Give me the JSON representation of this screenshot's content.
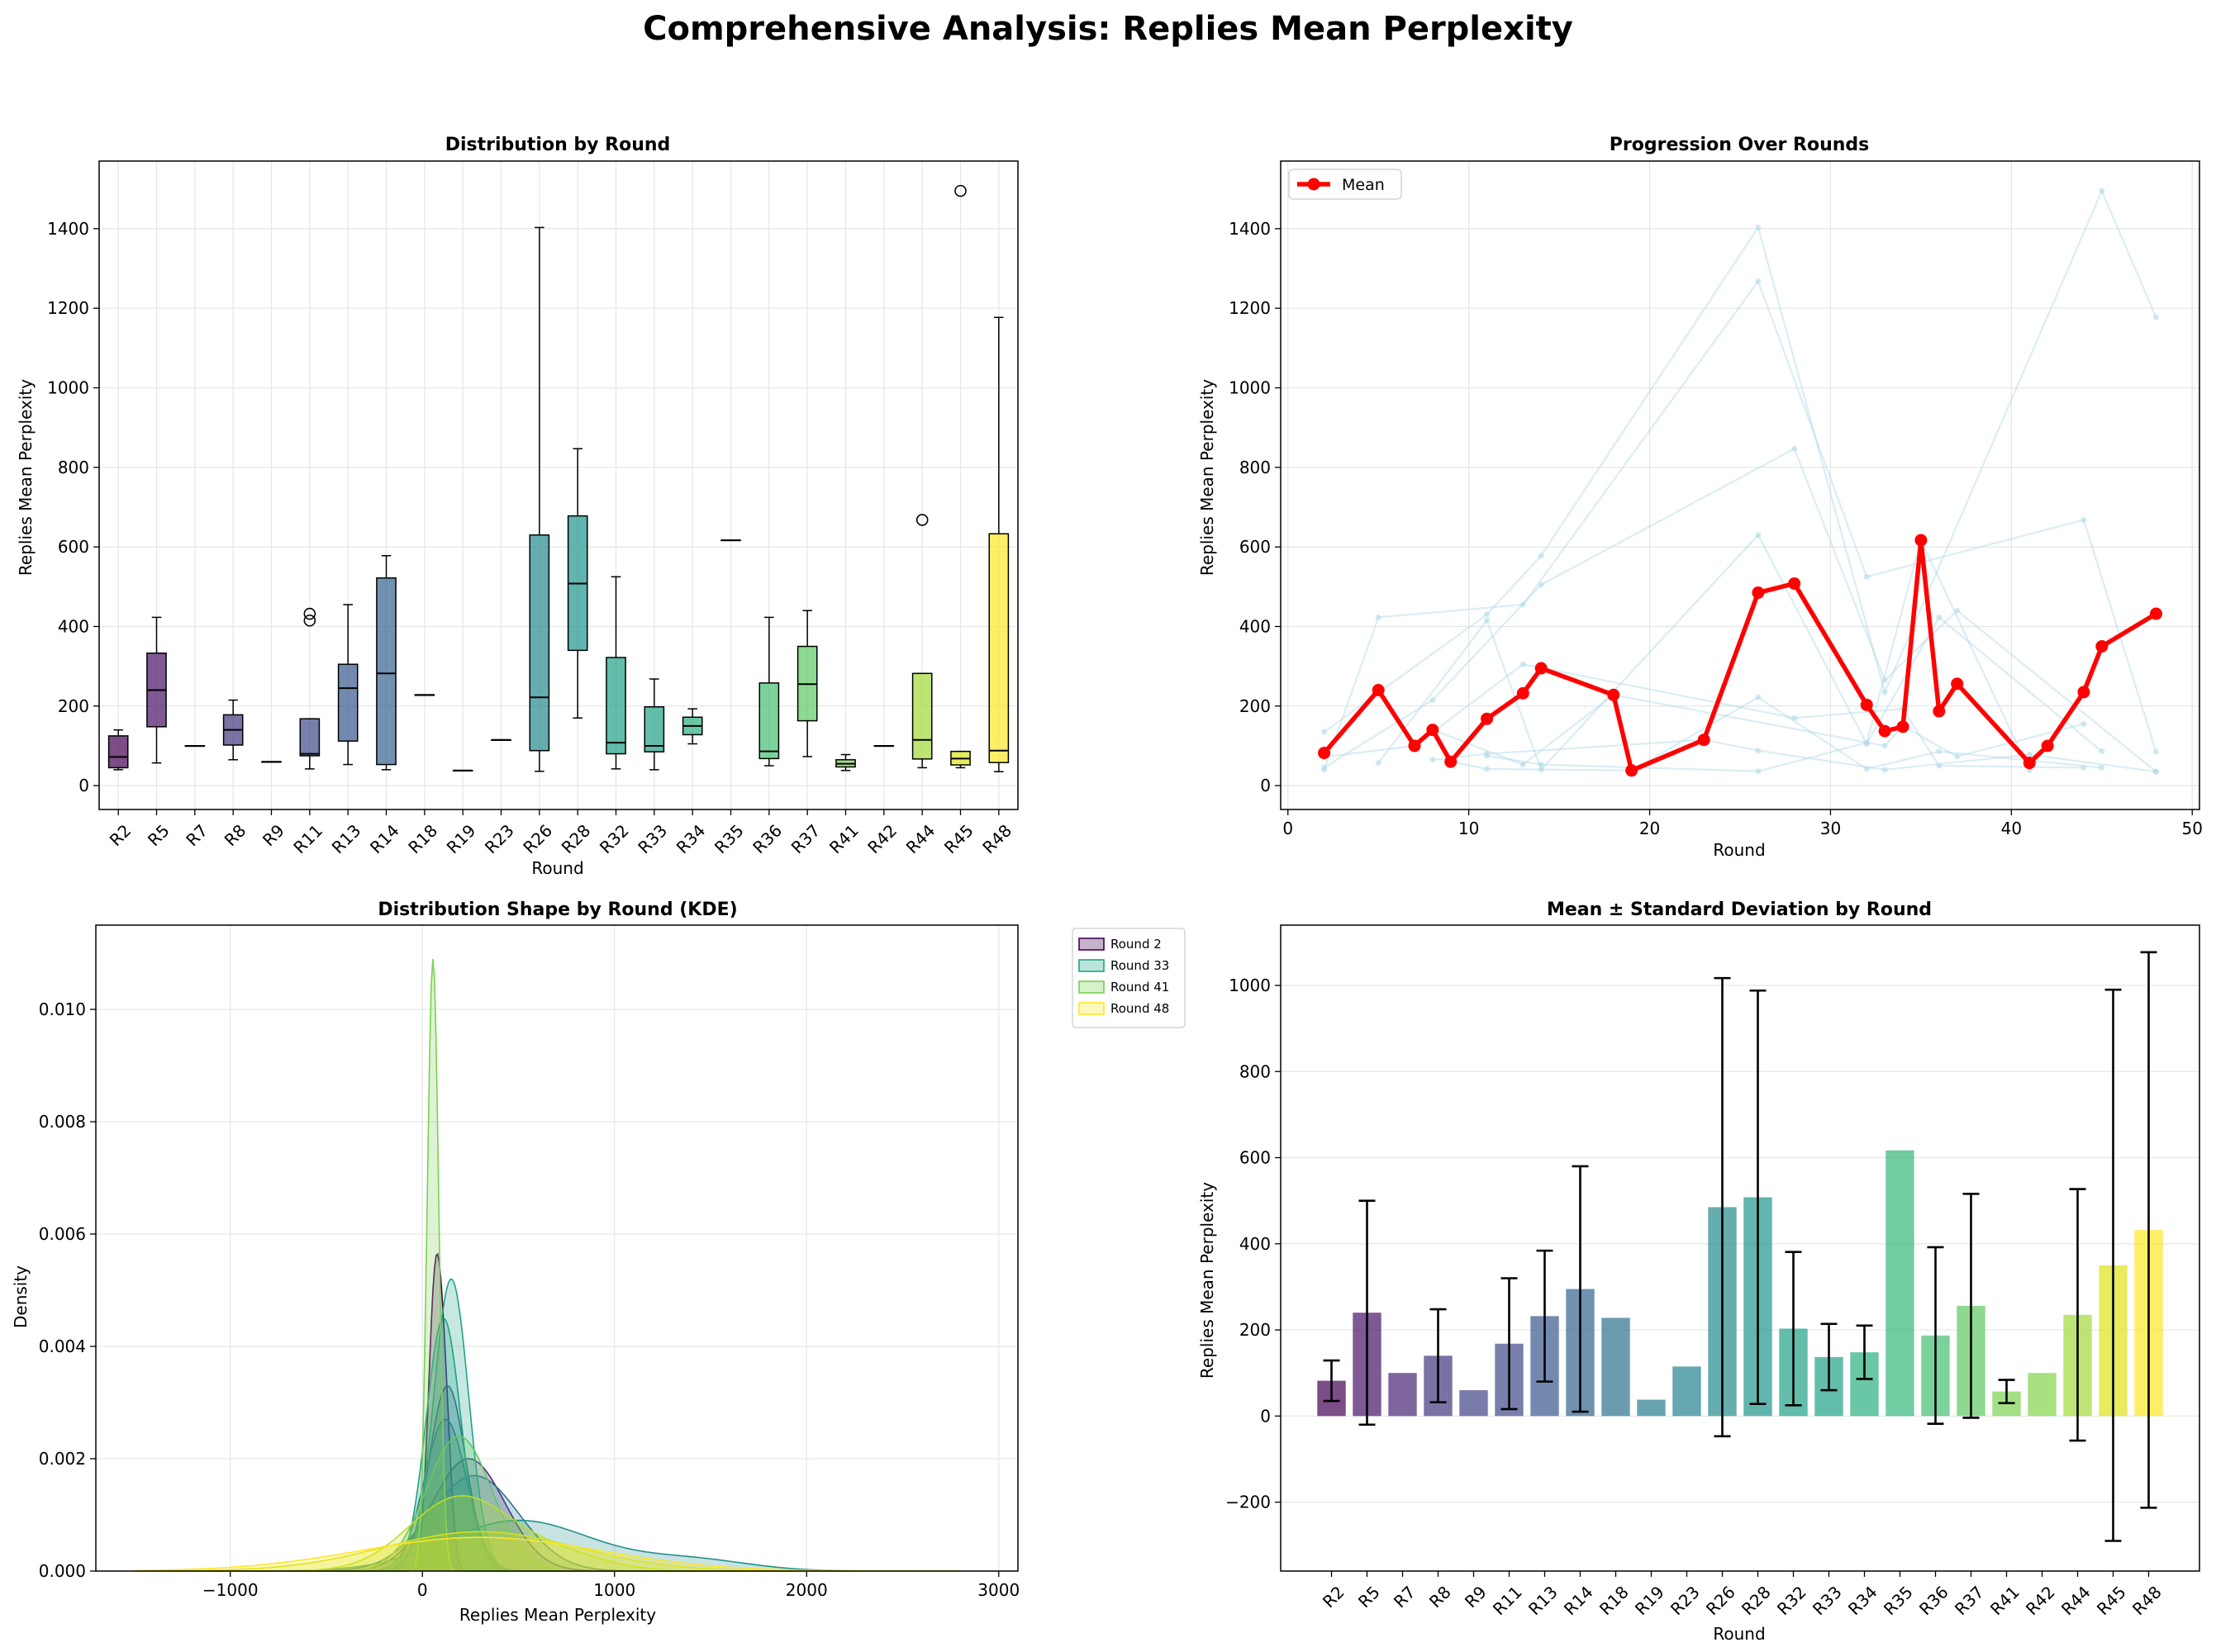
{
  "figure": {
    "suptitle": "Comprehensive Analysis: Replies Mean Perplexity"
  },
  "chart_data": [
    {
      "id": "box",
      "type": "box",
      "title": "Distribution by Round",
      "xlabel": "Round",
      "ylabel": "Replies Mean Perplexity",
      "ylim": [
        -60,
        1570
      ],
      "yticks": [
        0,
        200,
        400,
        600,
        800,
        1000,
        1200,
        1400
      ],
      "grid": true,
      "categories": [
        "R2",
        "R5",
        "R7",
        "R8",
        "R9",
        "R11",
        "R13",
        "R14",
        "R18",
        "R19",
        "R23",
        "R26",
        "R28",
        "R32",
        "R33",
        "R34",
        "R35",
        "R36",
        "R37",
        "R41",
        "R42",
        "R44",
        "R45",
        "R48"
      ],
      "colors": [
        "#440154",
        "#471366",
        "#482475",
        "#45347f",
        "#404386",
        "#3e4989",
        "#38588c",
        "#33638d",
        "#2d708e",
        "#287d8e",
        "#26828e",
        "#238a8d",
        "#1f968b",
        "#1fa187",
        "#20a386",
        "#29af7f",
        "#35b779",
        "#44bf70",
        "#5ec962",
        "#7ad151",
        "#84d44b",
        "#a2da37",
        "#dde318",
        "#fde725"
      ],
      "boxes": [
        {
          "min": 40,
          "q1": 45,
          "median": 72,
          "q3": 125,
          "max": 140,
          "outliers": []
        },
        {
          "min": 57,
          "q1": 148,
          "median": 240,
          "q3": 333,
          "max": 423,
          "outliers": []
        },
        {
          "min": 100,
          "q1": 100,
          "median": 100,
          "q3": 100,
          "max": 100,
          "outliers": []
        },
        {
          "min": 65,
          "q1": 102,
          "median": 140,
          "q3": 178,
          "max": 215,
          "outliers": []
        },
        {
          "min": 60,
          "q1": 60,
          "median": 60,
          "q3": 60,
          "max": 60,
          "outliers": []
        },
        {
          "min": 42,
          "q1": 75,
          "median": 80,
          "q3": 168,
          "max": 168,
          "outliers": [
            415,
            432
          ]
        },
        {
          "min": 53,
          "q1": 112,
          "median": 245,
          "q3": 305,
          "max": 455,
          "outliers": []
        },
        {
          "min": 40,
          "q1": 53,
          "median": 282,
          "q3": 522,
          "max": 578,
          "outliers": []
        },
        {
          "min": 228,
          "q1": 228,
          "median": 228,
          "q3": 228,
          "max": 228,
          "outliers": []
        },
        {
          "min": 38,
          "q1": 38,
          "median": 38,
          "q3": 38,
          "max": 38,
          "outliers": []
        },
        {
          "min": 115,
          "q1": 115,
          "median": 115,
          "q3": 115,
          "max": 115,
          "outliers": []
        },
        {
          "min": 36,
          "q1": 88,
          "median": 222,
          "q3": 630,
          "max": 1403,
          "outliers": []
        },
        {
          "min": 170,
          "q1": 340,
          "median": 508,
          "q3": 678,
          "max": 847,
          "outliers": []
        },
        {
          "min": 42,
          "q1": 80,
          "median": 108,
          "q3": 322,
          "max": 525,
          "outliers": []
        },
        {
          "min": 40,
          "q1": 85,
          "median": 100,
          "q3": 198,
          "max": 268,
          "outliers": []
        },
        {
          "min": 105,
          "q1": 128,
          "median": 150,
          "q3": 172,
          "max": 193,
          "outliers": []
        },
        {
          "min": 617,
          "q1": 617,
          "median": 617,
          "q3": 617,
          "max": 617,
          "outliers": []
        },
        {
          "min": 50,
          "q1": 68,
          "median": 86,
          "q3": 258,
          "max": 423,
          "outliers": []
        },
        {
          "min": 73,
          "q1": 163,
          "median": 255,
          "q3": 350,
          "max": 440,
          "outliers": []
        },
        {
          "min": 38,
          "q1": 47,
          "median": 55,
          "q3": 65,
          "max": 78,
          "outliers": []
        },
        {
          "min": 100,
          "q1": 100,
          "median": 100,
          "q3": 100,
          "max": 100,
          "outliers": []
        },
        {
          "min": 45,
          "q1": 67,
          "median": 115,
          "q3": 282,
          "max": 282,
          "outliers": [
            668
          ]
        },
        {
          "min": 45,
          "q1": 52,
          "median": 68,
          "q3": 86,
          "max": 86,
          "outliers": [
            1495
          ]
        },
        {
          "min": 35,
          "q1": 58,
          "median": 88,
          "q3": 633,
          "max": 1177,
          "outliers": []
        }
      ]
    },
    {
      "id": "line",
      "type": "line",
      "title": "Progression Over Rounds",
      "xlabel": "Round",
      "ylabel": "Replies Mean Perplexity",
      "xlim": [
        -0.4,
        50.4
      ],
      "ylim": [
        -60,
        1570
      ],
      "xticks": [
        0,
        10,
        20,
        30,
        40,
        50
      ],
      "yticks": [
        0,
        200,
        400,
        600,
        800,
        1000,
        1200,
        1400
      ],
      "grid": true,
      "legend": "top-left",
      "series": [
        {
          "name": "Mean",
          "color": "#ff0000",
          "x": [
            2,
            5,
            7,
            8,
            9,
            11,
            13,
            14,
            18,
            19,
            23,
            26,
            28,
            32,
            33,
            34,
            35,
            36,
            37,
            41,
            42,
            44,
            45,
            48
          ],
          "y": [
            82,
            240,
            100,
            140,
            60,
            168,
            232,
            295,
            228,
            38,
            115,
            485,
            508,
            203,
            137,
            148,
            617,
            187,
            256,
            57,
            100,
            235,
            350,
            432
          ]
        }
      ],
      "background_lines": {
        "color": "#add8e6",
        "lines": [
          {
            "x": [
              2,
              11,
              14,
              26,
              33,
              45,
              48
            ],
            "y": [
              135,
              430,
              578,
              1403,
              235,
              1495,
              1177
            ]
          },
          {
            "x": [
              2,
              5,
              13,
              26,
              32,
              44,
              48
            ],
            "y": [
              40,
              423,
              455,
              1268,
              525,
              668,
              85
            ]
          },
          {
            "x": [
              2,
              8,
              14,
              28,
              33,
              37,
              48
            ],
            "y": [
              45,
              215,
              505,
              847,
              265,
              440,
              35
            ]
          },
          {
            "x": [
              5,
              11,
              14,
              26,
              32,
              36,
              45
            ],
            "y": [
              57,
              415,
              40,
              630,
              105,
              423,
              86
            ]
          },
          {
            "x": [
              2,
              7,
              13,
              28,
              34,
              36,
              44
            ],
            "y": [
              72,
              100,
              305,
              170,
              193,
              50,
              45
            ]
          },
          {
            "x": [
              8,
              11,
              23,
              26,
              33,
              41,
              48
            ],
            "y": [
              65,
              80,
              115,
              88,
              40,
              78,
              35
            ]
          },
          {
            "x": [
              9,
              11,
              19,
              26,
              32,
              36,
              45
            ],
            "y": [
              60,
              42,
              38,
              222,
              42,
              86,
              45
            ]
          },
          {
            "x": [
              8,
              13,
              18,
              33,
              34,
              37,
              44
            ],
            "y": [
              140,
              53,
              228,
              100,
              150,
              73,
              155
            ]
          },
          {
            "x": [
              11,
              14,
              26,
              32,
              35,
              41,
              42
            ],
            "y": [
              75,
              53,
              36,
              108,
              617,
              38,
              100
            ]
          }
        ]
      }
    },
    {
      "id": "kde",
      "type": "area",
      "title": "Distribution Shape by Round (KDE)",
      "xlabel": "Replies Mean Perplexity",
      "ylabel": "Density",
      "xlim": [
        -1700,
        3100
      ],
      "ylim": [
        0,
        0.0115
      ],
      "xticks": [
        -1000,
        0,
        1000,
        2000,
        3000
      ],
      "yticks": [
        0.0,
        0.002,
        0.004,
        0.006,
        0.008,
        0.01
      ],
      "grid": true,
      "legend": "outside-top-right",
      "curves": [
        {
          "name": "Round 2",
          "legend": true,
          "color": "#440154",
          "comps": [
            [
              70,
              38,
              0.0053
            ],
            [
              125,
              30,
              0.0016
            ]
          ]
        },
        {
          "name": "",
          "legend": false,
          "color": "#472d7b",
          "comps": [
            [
              240,
              190,
              0.002
            ]
          ]
        },
        {
          "name": "",
          "legend": false,
          "color": "#3b528b",
          "comps": [
            [
              130,
              95,
              0.0033
            ]
          ]
        },
        {
          "name": "",
          "legend": false,
          "color": "#31688e",
          "comps": [
            [
              120,
              110,
              0.0027
            ]
          ]
        },
        {
          "name": "",
          "legend": false,
          "color": "#2c728e",
          "comps": [
            [
              270,
              230,
              0.0017
            ]
          ]
        },
        {
          "name": "",
          "legend": false,
          "color": "#21918c",
          "comps": [
            [
              500,
              380,
              0.0009
            ],
            [
              1400,
              300,
              0.0002
            ]
          ]
        },
        {
          "name": "",
          "legend": false,
          "color": "#1fa187",
          "comps": [
            [
              110,
              90,
              0.0045
            ]
          ]
        },
        {
          "name": "Round 33",
          "legend": true,
          "color": "#20a486",
          "comps": [
            [
              150,
              90,
              0.0052
            ]
          ]
        },
        {
          "name": "",
          "legend": false,
          "color": "#5ec962",
          "comps": [
            [
              190,
              170,
              0.0024
            ]
          ]
        },
        {
          "name": "Round 41",
          "legend": true,
          "color": "#7ad151",
          "comps": [
            [
              55,
              30,
              0.0109
            ]
          ]
        },
        {
          "name": "",
          "legend": false,
          "color": "#bddf26",
          "comps": [
            [
              190,
              260,
              0.0013
            ],
            [
              700,
              250,
              0.0003
            ]
          ]
        },
        {
          "name": "",
          "legend": false,
          "color": "#d8e219",
          "comps": [
            [
              300,
              500,
              0.0007
            ]
          ]
        },
        {
          "name": "Round 48",
          "legend": true,
          "color": "#fde725",
          "comps": [
            [
              300,
              620,
              0.0006
            ]
          ]
        }
      ]
    },
    {
      "id": "bar",
      "type": "bar",
      "title": "Mean ± Standard Deviation by Round",
      "xlabel": "Round",
      "ylabel": "Replies Mean Perplexity",
      "ylim": [
        -360,
        1140
      ],
      "yticks": [
        -200,
        0,
        200,
        400,
        600,
        800,
        1000
      ],
      "grid": true,
      "categories": [
        "R2",
        "R5",
        "R7",
        "R8",
        "R9",
        "R11",
        "R13",
        "R14",
        "R18",
        "R19",
        "R23",
        "R26",
        "R28",
        "R32",
        "R33",
        "R34",
        "R35",
        "R36",
        "R37",
        "R41",
        "R42",
        "R44",
        "R45",
        "R48"
      ],
      "values": [
        82,
        240,
        100,
        140,
        60,
        168,
        232,
        295,
        228,
        38,
        115,
        485,
        508,
        203,
        137,
        148,
        617,
        187,
        256,
        57,
        100,
        235,
        350,
        432
      ],
      "errors": [
        47,
        260,
        null,
        108,
        null,
        152,
        152,
        285,
        null,
        null,
        null,
        532,
        480,
        178,
        77,
        62,
        null,
        205,
        260,
        27,
        null,
        292,
        640,
        645
      ],
      "colors": [
        "#440154",
        "#471366",
        "#482475",
        "#45347f",
        "#404386",
        "#3e4989",
        "#38588c",
        "#33638d",
        "#2d708e",
        "#287d8e",
        "#26828e",
        "#238a8d",
        "#1f968b",
        "#1fa187",
        "#20a386",
        "#29af7f",
        "#35b779",
        "#44bf70",
        "#5ec962",
        "#7ad151",
        "#84d44b",
        "#a2da37",
        "#dde318",
        "#fde725"
      ]
    }
  ]
}
